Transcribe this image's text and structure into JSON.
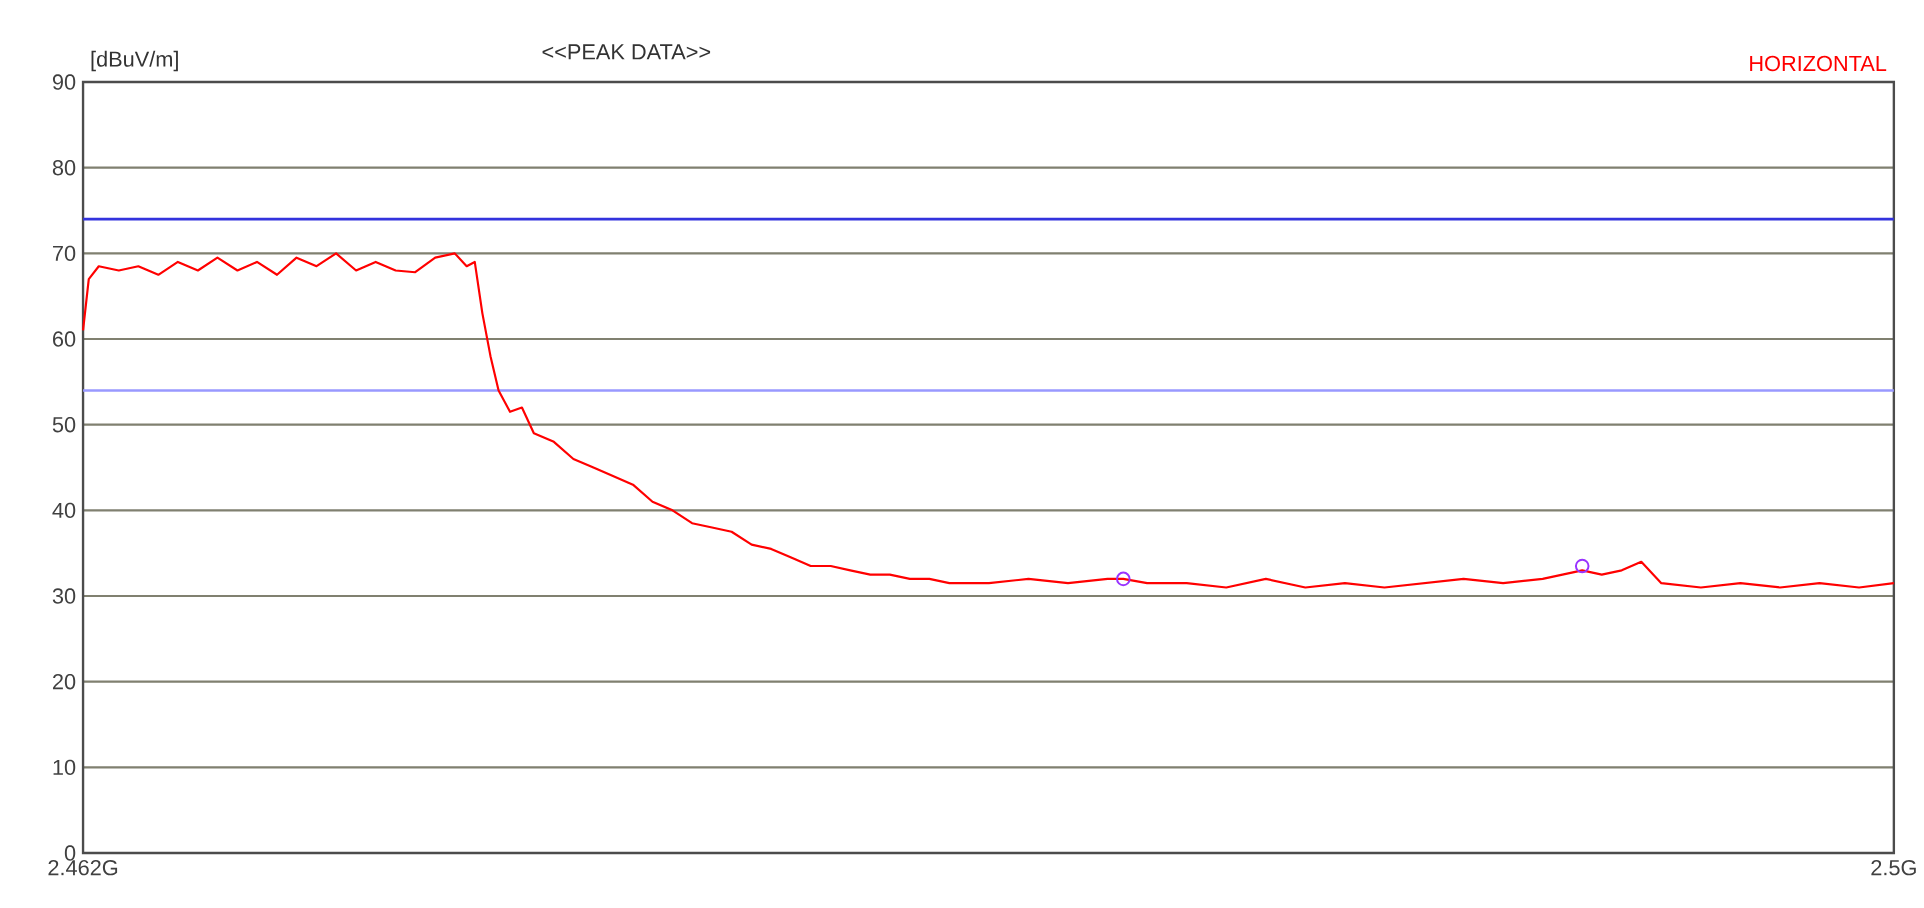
{
  "chart_data": {
    "type": "line",
    "title": "<<PEAK DATA>>",
    "ylabel": "[dBuV/m]",
    "xlim": [
      2.462,
      2.5
    ],
    "xticks": [
      {
        "value": 2.462,
        "label": "2.462G"
      },
      {
        "value": 2.5,
        "label": "2.5G"
      }
    ],
    "ylim": [
      0,
      90
    ],
    "yticks": [
      0,
      10,
      20,
      30,
      40,
      50,
      60,
      70,
      80,
      90
    ],
    "grid": "y",
    "ref_lines": [
      {
        "axis": "y",
        "value": 74,
        "color": "#3333dd"
      },
      {
        "axis": "y",
        "value": 54,
        "color": "#9999ff"
      }
    ],
    "series": [
      {
        "name": "HORIZONTAL",
        "color": "#ff0000",
        "marker": "none",
        "x": [
          2.462,
          2.46212,
          2.46233,
          2.46275,
          2.46316,
          2.46358,
          2.46399,
          2.46441,
          2.46482,
          2.46524,
          2.46565,
          2.46607,
          2.46648,
          2.4669,
          2.46731,
          2.46773,
          2.46814,
          2.46856,
          2.46897,
          2.46939,
          2.4698,
          2.47005,
          2.47022,
          2.47038,
          2.47055,
          2.47072,
          2.47096,
          2.47121,
          2.47146,
          2.47188,
          2.47229,
          2.47271,
          2.47312,
          2.47354,
          2.47395,
          2.47437,
          2.47478,
          2.4752,
          2.47561,
          2.47603,
          2.47644,
          2.47686,
          2.47727,
          2.47769,
          2.4781,
          2.47852,
          2.47893,
          2.47935,
          2.47976,
          2.48018,
          2.48101,
          2.48184,
          2.48267,
          2.4835,
          2.48383,
          2.48433,
          2.48516,
          2.48599,
          2.48682,
          2.48765,
          2.48848,
          2.48931,
          2.49014,
          2.49097,
          2.4918,
          2.49263,
          2.49346,
          2.49387,
          2.49429,
          2.4947,
          2.49512,
          2.49595,
          2.49678,
          2.49761,
          2.49844,
          2.49927,
          2.5
        ],
        "values": [
          61,
          67,
          68.5,
          68,
          68.5,
          67.5,
          69,
          68,
          69.5,
          68,
          69,
          67.5,
          69.5,
          68.5,
          70,
          68,
          69,
          68,
          67.8,
          69.5,
          70,
          68.5,
          69,
          63,
          58,
          54,
          51.5,
          52,
          49,
          48,
          46,
          45,
          44,
          43,
          41,
          40,
          38.5,
          38,
          37.5,
          36,
          35.5,
          34.5,
          33.5,
          33.5,
          33,
          32.5,
          32.5,
          32,
          32,
          31.5,
          31.5,
          32,
          31.5,
          32,
          32,
          31.5,
          31.5,
          31,
          32,
          31,
          31.5,
          31,
          31.5,
          32,
          31.5,
          32,
          33,
          32.5,
          33,
          34,
          31.5,
          31,
          31.5,
          31,
          31.5,
          31,
          31.5
        ]
      },
      {
        "color": "#9933ff",
        "type": "scatter",
        "marker": "circle",
        "x": [
          2.48383,
          2.49346
        ],
        "values": [
          32,
          33.5
        ]
      }
    ]
  }
}
